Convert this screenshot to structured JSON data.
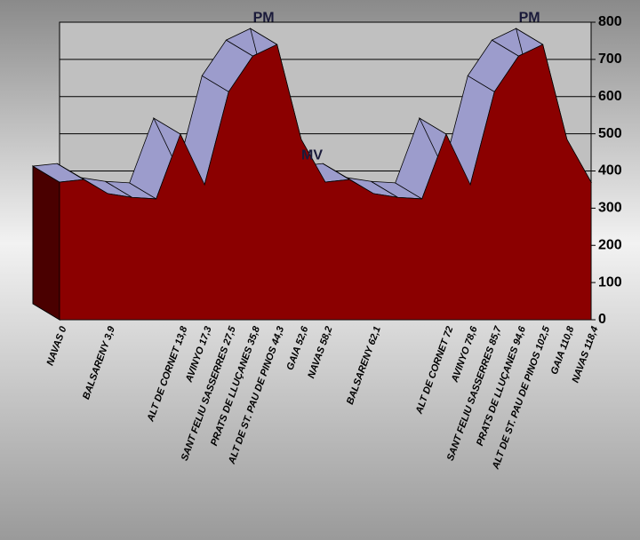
{
  "chart_data": {
    "type": "area",
    "categories": [
      "NAVAS  0",
      null,
      "BALSARENY  3,9",
      null,
      null,
      "ALT DE CORNET  13,8",
      "AVINYO  17,3",
      "SANT FELIU SASSERRES  27,5",
      "PRATS DE LLUÇANES  35,8",
      "ALT DE ST. PAU DE PINOS  44,3",
      "GAIA  52,6",
      "NAVAS  58,2",
      null,
      "BALSARENY  62,1",
      null,
      null,
      "ALT DE CORNET  72",
      "AVINYO  78,6",
      "SANT FELIU SASSERRES  85,7",
      "PRATS DE LLUÇANES  94,6",
      "ALT DE ST. PAU DE PINOS  102,5",
      "GAIA  110,8",
      "NAVAS  118,4"
    ],
    "values": [
      370,
      377,
      339,
      329,
      325,
      499,
      363,
      613,
      709,
      740,
      485,
      370,
      377,
      339,
      329,
      325,
      499,
      363,
      613,
      709,
      740,
      485,
      370
    ],
    "color": "#8b0000",
    "top_color": "#9c9ccc",
    "ylim": [
      0,
      800
    ],
    "yticks": [
      0,
      100,
      200,
      300,
      400,
      500,
      600,
      700,
      800
    ],
    "grid": true,
    "annotations": [
      {
        "text": "PM",
        "category": 9
      },
      {
        "text": "MV",
        "category": 11
      },
      {
        "text": "PM",
        "category": 20
      }
    ]
  }
}
